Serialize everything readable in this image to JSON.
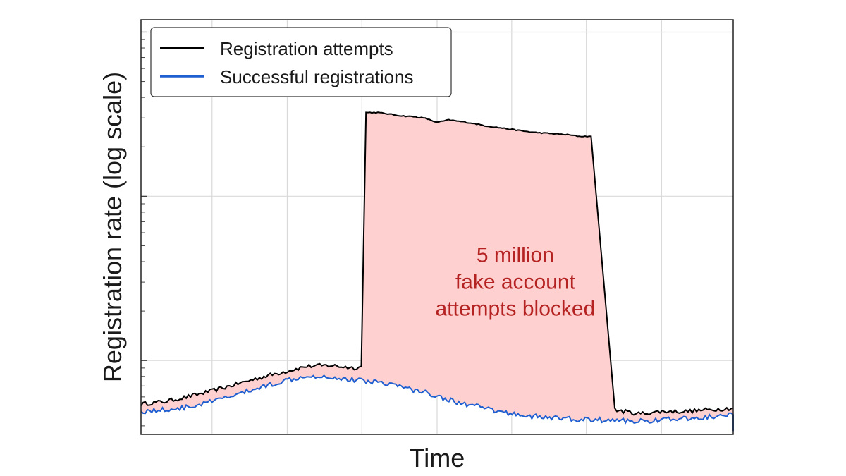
{
  "chart_data": {
    "type": "line",
    "xlabel": "Time",
    "ylabel": "Registration rate (log scale)",
    "y_scale": "log",
    "x_tick_labels": "none",
    "y_tick_labels": "none",
    "x": [
      0,
      4,
      8,
      12,
      16,
      20,
      24,
      28,
      32,
      36,
      37.2,
      38,
      40,
      42,
      44,
      46,
      48,
      50,
      52,
      54,
      56,
      58,
      60,
      62,
      64,
      66,
      68,
      70,
      72,
      74,
      76,
      80,
      84,
      88,
      92,
      96,
      100
    ],
    "series": [
      {
        "name": "Registration attempts",
        "color": "#000000",
        "values": [
          1.47,
          1.5,
          1.56,
          1.63,
          1.71,
          1.79,
          1.86,
          1.93,
          1.94,
          1.91,
          1.93,
          5.02,
          5.02,
          5.0,
          4.98,
          4.97,
          4.95,
          4.9,
          4.93,
          4.91,
          4.89,
          4.86,
          4.84,
          4.82,
          4.8,
          4.78,
          4.77,
          4.76,
          4.75,
          4.73,
          4.73,
          1.4,
          1.35,
          1.38,
          1.38,
          1.4,
          1.42
        ]
      },
      {
        "name": "Successful registrations",
        "color": "#1f5fd0",
        "values": [
          1.38,
          1.4,
          1.43,
          1.5,
          1.58,
          1.67,
          1.75,
          1.82,
          1.8,
          1.76,
          1.76,
          1.75,
          1.74,
          1.72,
          1.68,
          1.64,
          1.61,
          1.57,
          1.52,
          1.48,
          1.45,
          1.42,
          1.38,
          1.36,
          1.34,
          1.32,
          1.31,
          1.3,
          1.29,
          1.28,
          1.28,
          1.27,
          1.26,
          1.28,
          1.29,
          1.31,
          1.34
        ]
      }
    ],
    "fill_between": {
      "color": "#ffd0d0"
    },
    "xlim": [
      0,
      100
    ],
    "ylim": [
      1.1,
      6.15
    ],
    "grid": true,
    "legend_position": "top-left",
    "annotation": {
      "lines": [
        "5 million",
        "fake account",
        "attempts blocked"
      ],
      "color": "#b52222"
    }
  }
}
